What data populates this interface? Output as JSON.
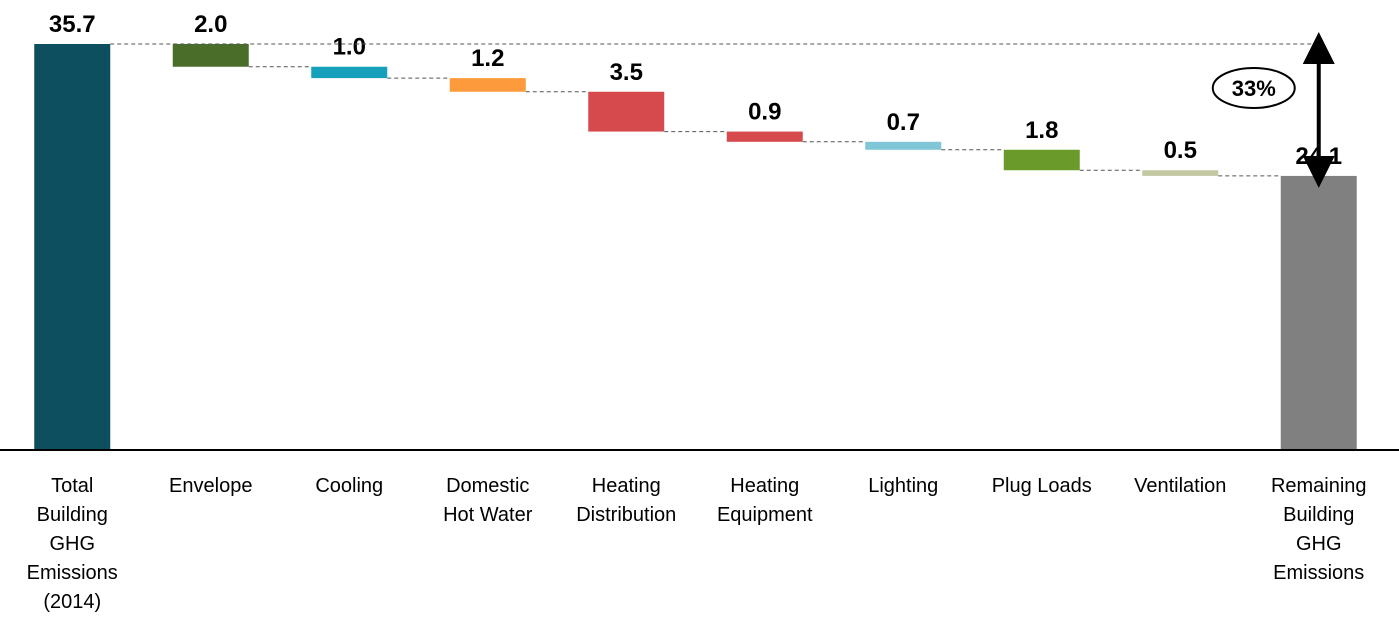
{
  "chart_data": {
    "type": "waterfall",
    "categories": [
      "Total\nBuilding\nGHG\nEmissions\n(2014)",
      "Envelope",
      "Cooling",
      "Domestic\nHot Water",
      "Heating\nDistribution",
      "Heating\nEquipment",
      "Lighting",
      "Plug Loads",
      "Ventilation",
      "Remaining\nBuilding\nGHG\nEmissions"
    ],
    "measure": [
      "absolute",
      "relative",
      "relative",
      "relative",
      "relative",
      "relative",
      "relative",
      "relative",
      "relative",
      "total"
    ],
    "values": [
      35.7,
      2.0,
      1.0,
      1.2,
      3.5,
      0.9,
      0.7,
      1.8,
      0.5,
      24.1
    ],
    "value_labels": [
      "35.7",
      "2.0",
      "1.0",
      "1.2",
      "3.5",
      "0.9",
      "0.7",
      "1.8",
      "0.5",
      "24.1"
    ],
    "colors": [
      "#0d4f5f",
      "#4a6e2a",
      "#17a0bb",
      "#fd9a3c",
      "#d6494c",
      "#d6494c",
      "#7fc6d6",
      "#6a9a2a",
      "#c4c9a4",
      "#808080"
    ],
    "annotation": "33%"
  }
}
